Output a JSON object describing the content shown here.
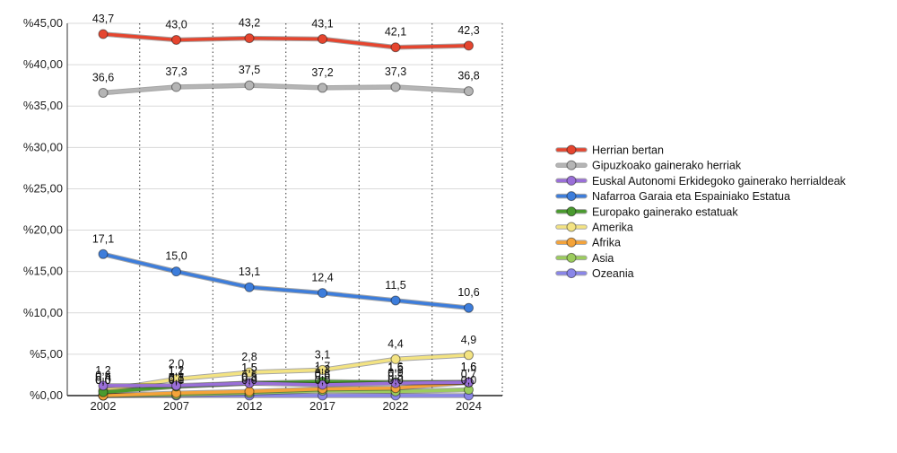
{
  "chart_data": {
    "type": "line",
    "x": [
      "2002",
      "2007",
      "2012",
      "2017",
      "2022",
      "2024"
    ],
    "y_ticks": [
      "%0,00",
      "%5,00",
      "%10,00",
      "%15,00",
      "%20,00",
      "%25,00",
      "%30,00",
      "%35,00",
      "%40,00",
      "%45,00"
    ],
    "ylim": [
      0,
      45
    ],
    "grid": {
      "horizontal": true,
      "vertical_dotted": true
    },
    "legend_position": "right",
    "series": [
      {
        "name": "Herrian bertan",
        "color": "#e5452f",
        "values": [
          43.7,
          43.0,
          43.2,
          43.1,
          42.1,
          42.3
        ],
        "labels": [
          "43,7",
          "43,0",
          "43,2",
          "43,1",
          "42,1",
          "42,3"
        ]
      },
      {
        "name": "Gipuzkoako gainerako herriak",
        "color": "#b5b5b5",
        "values": [
          36.6,
          37.3,
          37.5,
          37.2,
          37.3,
          36.8
        ],
        "labels": [
          "36,6",
          "37,3",
          "37,5",
          "37,2",
          "37,3",
          "36,8"
        ]
      },
      {
        "name": "Euskal Autonomi Erkidegoko gainerako herrialdeak",
        "color": "#9a6fd8",
        "values": [
          1.2,
          1.2,
          1.5,
          1.3,
          1.5,
          1.6
        ],
        "labels": [
          "1,2",
          "1,2",
          "1,5",
          "1,3",
          "1,5",
          "1,6"
        ]
      },
      {
        "name": "Nafarroa Garaia eta Espainiako Estatua",
        "color": "#3d7ddb",
        "values": [
          17.1,
          15.0,
          13.1,
          12.4,
          11.5,
          10.6
        ],
        "labels": [
          "17,1",
          "15,0",
          "13,1",
          "12,4",
          "11,5",
          "10,6"
        ]
      },
      {
        "name": "Europako gainerako estatuak",
        "color": "#4a9a2f",
        "values": [
          0.4,
          1.1,
          1.5,
          1.7,
          1.6,
          1.6
        ],
        "labels": [
          "0,4",
          "1,1",
          "1,5",
          "1,7",
          "1,6",
          "1,6"
        ]
      },
      {
        "name": "Amerika",
        "color": "#f3e382",
        "values": [
          0.6,
          2.0,
          2.8,
          3.1,
          4.4,
          4.9
        ],
        "labels": [
          "0,6",
          "2,0",
          "2,8",
          "3,1",
          "4,4",
          "4,9"
        ]
      },
      {
        "name": "Afrika",
        "color": "#f4a33a",
        "values": [
          0.0,
          0.3,
          0.5,
          0.8,
          0.9,
          1.6
        ],
        "labels": [
          "0,0",
          "0,3",
          "0,5",
          "0,8",
          "0,9",
          "1,6"
        ]
      },
      {
        "name": "Asia",
        "color": "#9ccc5e",
        "values": [
          0.0,
          0.1,
          0.3,
          0.6,
          0.5,
          0.7
        ],
        "labels": [
          "0,0",
          "0,1",
          "0,3",
          "0,6",
          "0,5",
          "0,7"
        ]
      },
      {
        "name": "Ozeania",
        "color": "#8a86e8",
        "values": [
          0.0,
          0.0,
          0.0,
          0.0,
          0.0,
          0.0
        ],
        "labels": [
          "0,0",
          "0,0",
          "0,0",
          "0,0",
          "0,0",
          "0,0"
        ]
      }
    ]
  }
}
